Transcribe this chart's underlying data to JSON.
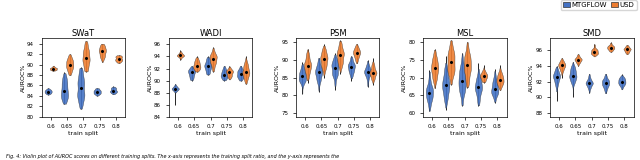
{
  "datasets": [
    "SWaT",
    "WADI",
    "PSM",
    "MSL",
    "SMD"
  ],
  "x_positions": [
    0.6,
    0.65,
    0.7,
    0.75,
    0.8
  ],
  "color_mtgflow": "#4472C4",
  "color_usd": "#ED7D31",
  "xlabel": "train split",
  "ylabel": "AUROC%",
  "caption": "Fig. 4: Violin plot of AUROC scores on different training splits. The x-axis represents the training split ratio, and the y-axis represents the",
  "SWaT": {
    "ylim": [
      80.0,
      95.0
    ],
    "yticks": [
      80.0,
      82.0,
      84.0,
      86.0,
      88.0,
      90.0,
      92.0,
      94.0
    ],
    "mtgflow": {
      "centers": [
        84.8,
        85.5,
        85.0,
        84.8,
        85.0
      ],
      "spreads": [
        0.4,
        2.8,
        3.8,
        0.5,
        0.5
      ],
      "mins": [
        84.2,
        82.5,
        81.5,
        84.0,
        84.3
      ],
      "maxs": [
        85.5,
        88.5,
        89.5,
        85.5,
        85.8
      ]
    },
    "usd": {
      "centers": [
        89.2,
        90.0,
        91.5,
        92.5,
        91.2
      ],
      "spreads": [
        0.3,
        1.5,
        2.5,
        1.5,
        0.8
      ],
      "mins": [
        88.8,
        88.0,
        88.5,
        90.5,
        90.3
      ],
      "maxs": [
        89.8,
        92.0,
        94.5,
        94.0,
        91.8
      ]
    }
  },
  "WADI": {
    "ylim": [
      84.0,
      97.0
    ],
    "yticks": [
      84.0,
      86.0,
      88.0,
      90.0,
      92.0,
      94.0,
      96.0
    ],
    "mtgflow": {
      "centers": [
        88.7,
        91.3,
        92.5,
        91.0,
        91.0
      ],
      "spreads": [
        0.3,
        0.8,
        1.0,
        0.7,
        0.7
      ],
      "mins": [
        86.0,
        90.0,
        91.0,
        90.0,
        90.0
      ],
      "maxs": [
        89.5,
        92.5,
        94.0,
        92.5,
        92.5
      ]
    },
    "usd": {
      "centers": [
        94.2,
        92.5,
        93.5,
        91.2,
        91.5
      ],
      "spreads": [
        0.3,
        0.8,
        1.0,
        0.7,
        1.0
      ],
      "mins": [
        93.5,
        91.5,
        91.5,
        90.2,
        89.5
      ],
      "maxs": [
        95.0,
        94.0,
        95.5,
        92.5,
        94.0
      ]
    }
  },
  "PSM": {
    "ylim": [
      74.0,
      96.0
    ],
    "yticks": [
      75.0,
      80.0,
      85.0,
      90.0,
      95.0
    ],
    "mtgflow": {
      "centers": [
        85.5,
        86.5,
        87.5,
        88.0,
        86.5
      ],
      "spreads": [
        2.0,
        2.0,
        2.2,
        1.5,
        1.5
      ],
      "mins": [
        80.5,
        81.0,
        81.5,
        84.0,
        82.5
      ],
      "maxs": [
        89.5,
        90.5,
        92.0,
        91.0,
        90.0
      ]
    },
    "usd": {
      "centers": [
        88.5,
        90.0,
        91.0,
        92.0,
        86.5
      ],
      "spreads": [
        2.0,
        2.0,
        2.2,
        1.5,
        1.5
      ],
      "mins": [
        83.5,
        85.0,
        86.0,
        89.0,
        83.0
      ],
      "maxs": [
        93.0,
        94.5,
        95.5,
        94.5,
        90.5
      ]
    }
  },
  "MSL": {
    "ylim": [
      59.0,
      81.0
    ],
    "yticks": [
      60.0,
      65.0,
      70.0,
      75.0,
      80.0
    ],
    "mtgflow": {
      "centers": [
        65.5,
        68.0,
        69.0,
        67.5,
        67.0
      ],
      "spreads": [
        2.5,
        3.5,
        3.5,
        2.5,
        2.0
      ],
      "mins": [
        60.5,
        61.0,
        62.0,
        62.0,
        63.0
      ],
      "maxs": [
        72.0,
        76.0,
        77.0,
        74.0,
        72.5
      ]
    },
    "usd": {
      "centers": [
        72.5,
        74.5,
        73.5,
        70.5,
        69.5
      ],
      "spreads": [
        2.5,
        3.5,
        3.5,
        1.0,
        1.5
      ],
      "mins": [
        67.0,
        68.0,
        67.0,
        68.5,
        66.5
      ],
      "maxs": [
        78.0,
        80.5,
        80.0,
        73.5,
        73.5
      ]
    }
  },
  "SMD": {
    "ylim": [
      87.5,
      97.5
    ],
    "yticks": [
      88.0,
      90.0,
      92.0,
      94.0,
      96.0
    ],
    "mtgflow": {
      "centers": [
        92.5,
        93.0,
        91.8,
        91.8,
        92.0
      ],
      "spreads": [
        0.8,
        0.8,
        0.5,
        0.5,
        0.4
      ],
      "mins": [
        89.5,
        90.0,
        90.5,
        90.5,
        91.0
      ],
      "maxs": [
        94.0,
        94.5,
        93.0,
        93.0,
        93.0
      ]
    },
    "usd": {
      "centers": [
        94.0,
        94.8,
        95.8,
        96.3,
        96.0
      ],
      "spreads": [
        0.5,
        0.4,
        0.4,
        0.3,
        0.3
      ],
      "mins": [
        92.5,
        94.0,
        95.2,
        95.8,
        95.5
      ],
      "maxs": [
        95.0,
        95.5,
        96.8,
        97.0,
        96.7
      ]
    }
  }
}
